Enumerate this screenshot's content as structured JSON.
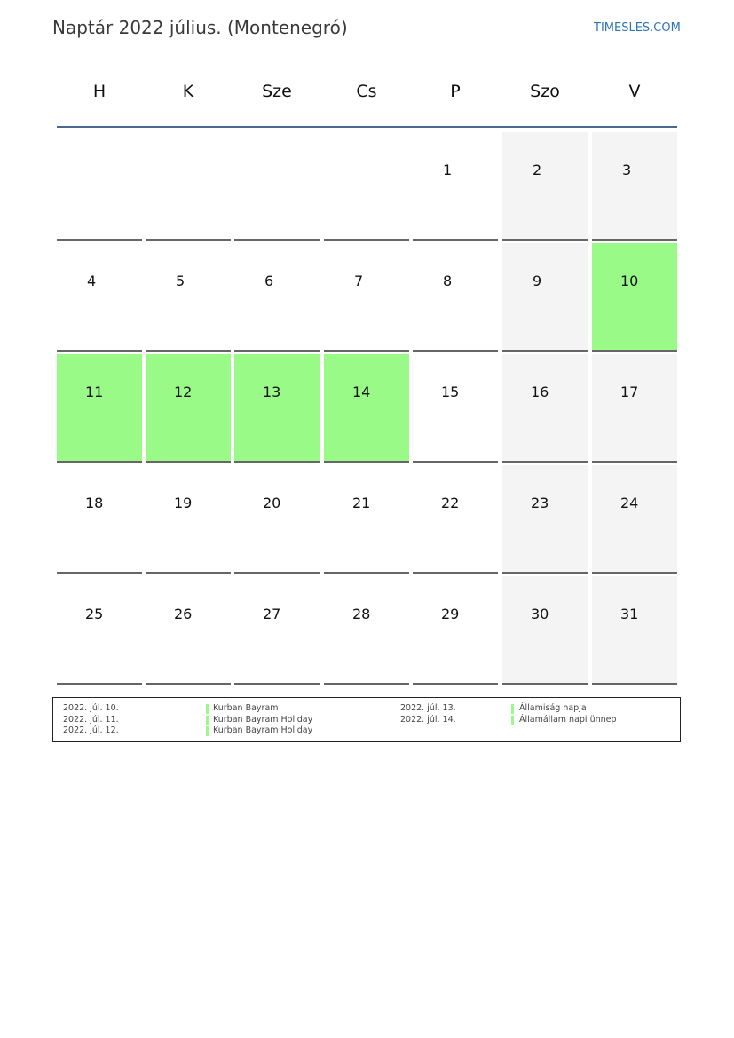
{
  "title": "Naptár 2022 július. (Montenegró)",
  "brand": "TIMESLES.COM",
  "colors": {
    "holiday": "#99fa87",
    "weekend": "#f4f4f4",
    "header_line": "#4a6890"
  },
  "weekdays": [
    "H",
    "K",
    "Sze",
    "Cs",
    "P",
    "Szo",
    "V"
  ],
  "weeks": [
    [
      null,
      null,
      null,
      null,
      {
        "d": "1"
      },
      {
        "d": "2",
        "t": "weekend"
      },
      {
        "d": "3",
        "t": "weekend"
      }
    ],
    [
      {
        "d": "4"
      },
      {
        "d": "5"
      },
      {
        "d": "6"
      },
      {
        "d": "7"
      },
      {
        "d": "8"
      },
      {
        "d": "9",
        "t": "weekend"
      },
      {
        "d": "10",
        "t": "holiday"
      }
    ],
    [
      {
        "d": "11",
        "t": "holiday"
      },
      {
        "d": "12",
        "t": "holiday"
      },
      {
        "d": "13",
        "t": "holiday"
      },
      {
        "d": "14",
        "t": "holiday"
      },
      {
        "d": "15"
      },
      {
        "d": "16",
        "t": "weekend"
      },
      {
        "d": "17",
        "t": "weekend"
      }
    ],
    [
      {
        "d": "18"
      },
      {
        "d": "19"
      },
      {
        "d": "20"
      },
      {
        "d": "21"
      },
      {
        "d": "22"
      },
      {
        "d": "23",
        "t": "weekend"
      },
      {
        "d": "24",
        "t": "weekend"
      }
    ],
    [
      {
        "d": "25"
      },
      {
        "d": "26"
      },
      {
        "d": "27"
      },
      {
        "d": "28"
      },
      {
        "d": "29"
      },
      {
        "d": "30",
        "t": "weekend"
      },
      {
        "d": "31",
        "t": "weekend"
      }
    ]
  ],
  "legend": [
    {
      "date": "2022. júl. 10.",
      "name": "Kurban Bayram"
    },
    {
      "date": "2022. júl. 11.",
      "name": "Kurban Bayram Holiday"
    },
    {
      "date": "2022. júl. 12.",
      "name": "Kurban Bayram Holiday"
    },
    {
      "date": "2022. júl. 13.",
      "name": "Államiság napja"
    },
    {
      "date": "2022. júl. 14.",
      "name": "Államállam napi ünnep"
    }
  ]
}
